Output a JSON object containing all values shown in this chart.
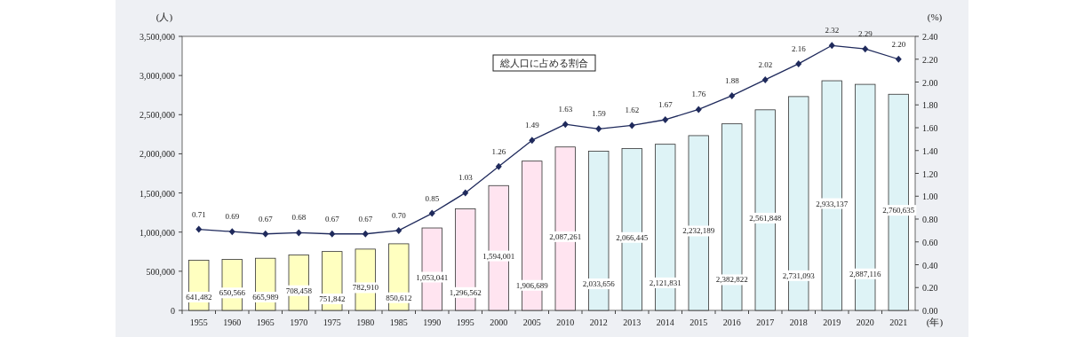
{
  "chart_data": {
    "type": "bar",
    "xlabel": "(年)",
    "ylabel": "(人)",
    "y2label": "(%)",
    "categories": [
      "1955",
      "1960",
      "1965",
      "1970",
      "1975",
      "1980",
      "1985",
      "1990",
      "1995",
      "2000",
      "2005",
      "2010",
      "2012",
      "2013",
      "2014",
      "2015",
      "2016",
      "2017",
      "2018",
      "2019",
      "2020",
      "2021"
    ],
    "series": [
      {
        "colors": [
          "#ffffc0",
          "#ffffc0",
          "#ffffc0",
          "#ffffc0",
          "#ffffc0",
          "#ffffc0",
          "#ffffc0",
          "#ffe4f0",
          "#ffe4f0",
          "#ffe4f0",
          "#ffe4f0",
          "#ffe4f0",
          "#def3f6",
          "#def3f6",
          "#def3f6",
          "#def3f6",
          "#def3f6",
          "#def3f6",
          "#def3f6",
          "#def3f6",
          "#def3f6",
          "#def3f6"
        ],
        "values": [
          641482,
          650566,
          665989,
          708458,
          751842,
          782910,
          850612,
          1053041,
          1296562,
          1594001,
          1906689,
          2087261,
          2033656,
          2066445,
          2121831,
          2232189,
          2382822,
          2561848,
          2731093,
          2933137,
          2887116,
          2760635
        ],
        "value_labels": [
          "641,482",
          "650,566",
          "665,989",
          "708,458",
          "751,842",
          "782,910",
          "850,612",
          "1,053,041",
          "1,296,562",
          "1,594,001",
          "1,906,689",
          "2,087,261",
          "2,033,656",
          "2,066,445",
          "2,121,831",
          "2,232,189",
          "2,382,822",
          "2,561,848",
          "2,731,093",
          "2,933,137",
          "2,887,116",
          "2,760,635"
        ]
      },
      {
        "type": "line",
        "axis": "y2",
        "name": "総人口に占める割合",
        "color": "#1f2a5c",
        "marker": "diamond",
        "values": [
          0.71,
          0.69,
          0.67,
          0.68,
          0.67,
          0.67,
          0.7,
          0.85,
          1.03,
          1.26,
          1.49,
          1.63,
          1.59,
          1.62,
          1.67,
          1.76,
          1.88,
          2.02,
          2.16,
          2.32,
          2.29,
          2.2
        ],
        "value_labels": [
          "0.71",
          "0.69",
          "0.67",
          "0.68",
          "0.67",
          "0.67",
          "0.70",
          "0.85",
          "1.03",
          "1.26",
          "1.49",
          "1.63",
          "1.59",
          "1.62",
          "1.67",
          "1.76",
          "1.88",
          "2.02",
          "2.16",
          "2.32",
          "2.29",
          "2.20"
        ]
      }
    ],
    "ylim": [
      0,
      3500000
    ],
    "yticks": [
      {
        "value": 0,
        "label": "0"
      },
      {
        "value": 500000,
        "label": "500,000"
      },
      {
        "value": 1000000,
        "label": "1,000,000"
      },
      {
        "value": 1500000,
        "label": "1,500,000"
      },
      {
        "value": 2000000,
        "label": "2,000,000"
      },
      {
        "value": 2500000,
        "label": "2,500,000"
      },
      {
        "value": 3000000,
        "label": "3,000,000"
      },
      {
        "value": 3500000,
        "label": "3,500,000"
      }
    ],
    "y2lim": [
      0,
      2.4
    ],
    "y2ticks": [
      {
        "value": 0,
        "label": "0.00"
      },
      {
        "value": 0.2,
        "label": "0.20"
      },
      {
        "value": 0.4,
        "label": "0.40"
      },
      {
        "value": 0.6,
        "label": "0.60"
      },
      {
        "value": 0.8,
        "label": "0.80"
      },
      {
        "value": 1.0,
        "label": "1.00"
      },
      {
        "value": 1.2,
        "label": "1.20"
      },
      {
        "value": 1.4,
        "label": "1.40"
      },
      {
        "value": 1.6,
        "label": "1.60"
      },
      {
        "value": 1.8,
        "label": "1.80"
      },
      {
        "value": 2.0,
        "label": "2.00"
      },
      {
        "value": 2.2,
        "label": "2.20"
      },
      {
        "value": 2.4,
        "label": "2.40"
      }
    ],
    "legend": "top",
    "grid": false
  }
}
